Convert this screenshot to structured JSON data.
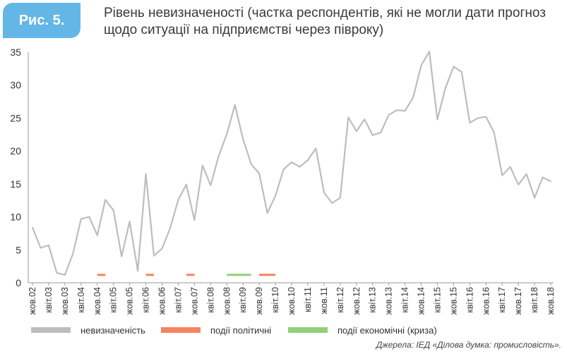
{
  "figure": {
    "label": "Рис. 5.",
    "title": "Рівень невизначеності (частка респондентів, які не могли дати прогноз щодо ситуації на підприємстві через півроку)"
  },
  "legend": {
    "uncertainty": "невизначеність",
    "political": "події політичні",
    "economic": "події економічні (криза)"
  },
  "source": "Джерела: ІЕД «Ділова думка: промисловість».",
  "colors": {
    "uncertainty": "#bdbdbd",
    "political": "#f4845f",
    "economic": "#92cf7a"
  },
  "chart_data": {
    "type": "line",
    "ylim": [
      0,
      35
    ],
    "yticks": [
      0,
      5,
      10,
      15,
      20,
      25,
      30,
      35
    ],
    "xtick_labels": [
      "жов.02",
      "квіт.03",
      "жов.03",
      "квіт.04",
      "жов.04",
      "квіт.05",
      "жов.05",
      "квіт.06",
      "жов.06",
      "квіт.07",
      "жов.07",
      "квіт.08",
      "жов.08",
      "квіт.09",
      "жов.09",
      "квіт.10",
      "жов.10",
      "квіт.11",
      "жов.11",
      "квіт.12",
      "жов.12",
      "квіт.13",
      "жов.13",
      "квіт.14",
      "жов.14",
      "квіт.15",
      "жов.15",
      "квіт.16",
      "жов.16",
      "квіт.17",
      "жов.17",
      "квіт.18",
      "жов.18"
    ],
    "series": [
      {
        "name": "невизначеність",
        "values": [
          8.4,
          5.3,
          5.7,
          1.5,
          1.2,
          4.4,
          9.7,
          10.0,
          7.2,
          12.6,
          11.0,
          4.0,
          9.3,
          1.8,
          16.5,
          4.1,
          5.2,
          8.3,
          12.6,
          14.9,
          9.5,
          17.8,
          14.8,
          19.3,
          22.6,
          27.0,
          21.8,
          18.0,
          16.6,
          10.6,
          13.2,
          17.2,
          18.3,
          17.6,
          18.6,
          20.4,
          13.7,
          12.1,
          12.9,
          25.1,
          23.0,
          24.8,
          22.4,
          22.8,
          25.5,
          26.2,
          26.1,
          28.1,
          33.0,
          35.1,
          24.8,
          29.6,
          32.8,
          32.0,
          24.3,
          25.0,
          25.2,
          22.8,
          16.3,
          17.6,
          14.9,
          16.5,
          12.9,
          16.0,
          15.4
        ]
      }
    ],
    "events": [
      {
        "kind": "political",
        "name": "події політичні",
        "x_start": 4,
        "x_end": 4.5,
        "y": 1.2
      },
      {
        "kind": "political",
        "name": "події політичні",
        "x_start": 7,
        "x_end": 7.5,
        "y": 1.2
      },
      {
        "kind": "political",
        "name": "події політичні",
        "x_start": 9.5,
        "x_end": 10,
        "y": 1.2
      },
      {
        "kind": "economic",
        "name": "події економічні (криза)",
        "x_start": 12,
        "x_end": 13.5,
        "y": 1.2
      },
      {
        "kind": "political",
        "name": "події політичні",
        "x_start": 14,
        "x_end": 15,
        "y": 1.2
      }
    ]
  }
}
